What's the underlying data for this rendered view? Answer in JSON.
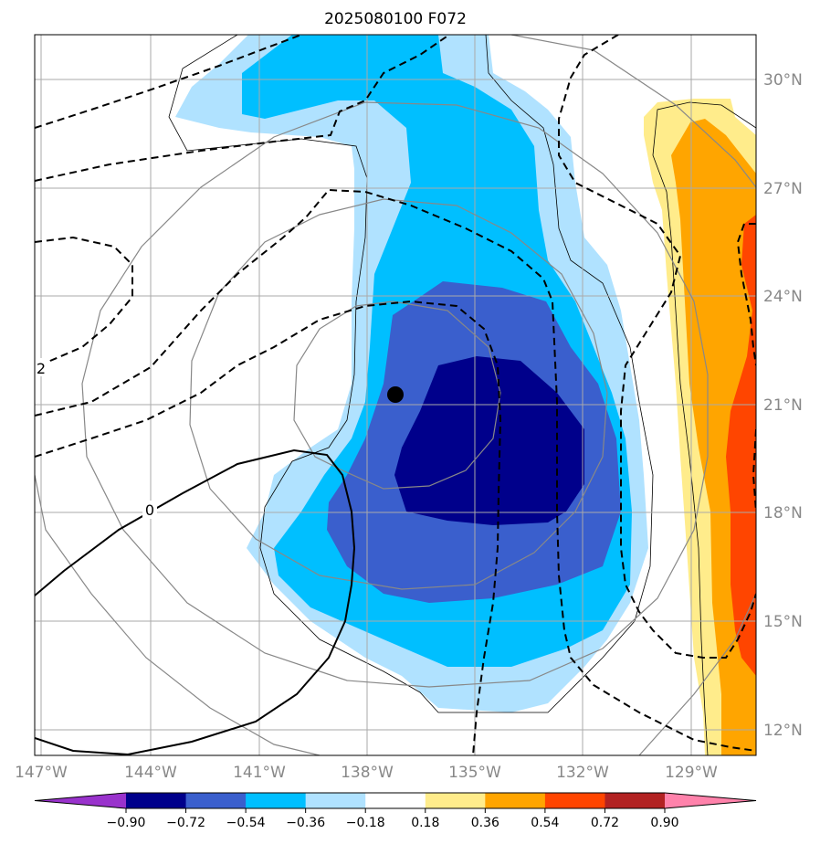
{
  "title": "2025080100 F072",
  "map": {
    "lon_range": [
      -147.5,
      -126.8
    ],
    "lat_range": [
      11.2,
      31.0
    ],
    "lon_ticks": [
      {
        "lon": -147,
        "label": "147°W"
      },
      {
        "lon": -144,
        "label": "144°W"
      },
      {
        "lon": -141,
        "label": "141°W"
      },
      {
        "lon": -138,
        "label": "138°W"
      },
      {
        "lon": -135,
        "label": "135°W"
      },
      {
        "lon": -132,
        "label": "132°W"
      },
      {
        "lon": -129,
        "label": "129°W"
      }
    ],
    "lat_ticks": [
      {
        "lat": 12,
        "label": "12°N"
      },
      {
        "lat": 15,
        "label": "15°N"
      },
      {
        "lat": 18,
        "label": "18°N"
      },
      {
        "lat": 21,
        "label": "21°N"
      },
      {
        "lat": 24,
        "label": "24°N"
      },
      {
        "lat": 27,
        "label": "27°N"
      },
      {
        "lat": 30,
        "label": "30°N"
      }
    ],
    "storm_center": {
      "lon": -137.0,
      "lat": 21.3
    },
    "contour_labels": [
      {
        "text": "2",
        "lon": -147.3,
        "lat": 22.2
      },
      {
        "text": "0",
        "lon": -143.9,
        "lat": 18.1
      }
    ],
    "grid": true
  },
  "colorbar": {
    "levels": [
      "−0.90",
      "−0.72",
      "−0.54",
      "−0.36",
      "−0.18",
      "0.18",
      "0.36",
      "0.54",
      "0.72",
      "0.90"
    ],
    "colors": [
      "#9932cc",
      "#00008b",
      "#3a5fcd",
      "#00bfff",
      "#b0e2ff",
      "#ffffff",
      "#ffec8b",
      "#ffa500",
      "#ff4500",
      "#b22222",
      "#ff82ab"
    ]
  },
  "colors": {
    "very_strong_neg": "#00008b",
    "strong_neg": "#3a5fcd",
    "mid_neg": "#00bfff",
    "weak_neg": "#b0e2ff",
    "weak_pos": "#ffec8b",
    "mid_pos": "#ffa500",
    "strong_pos": "#ff4500"
  }
}
